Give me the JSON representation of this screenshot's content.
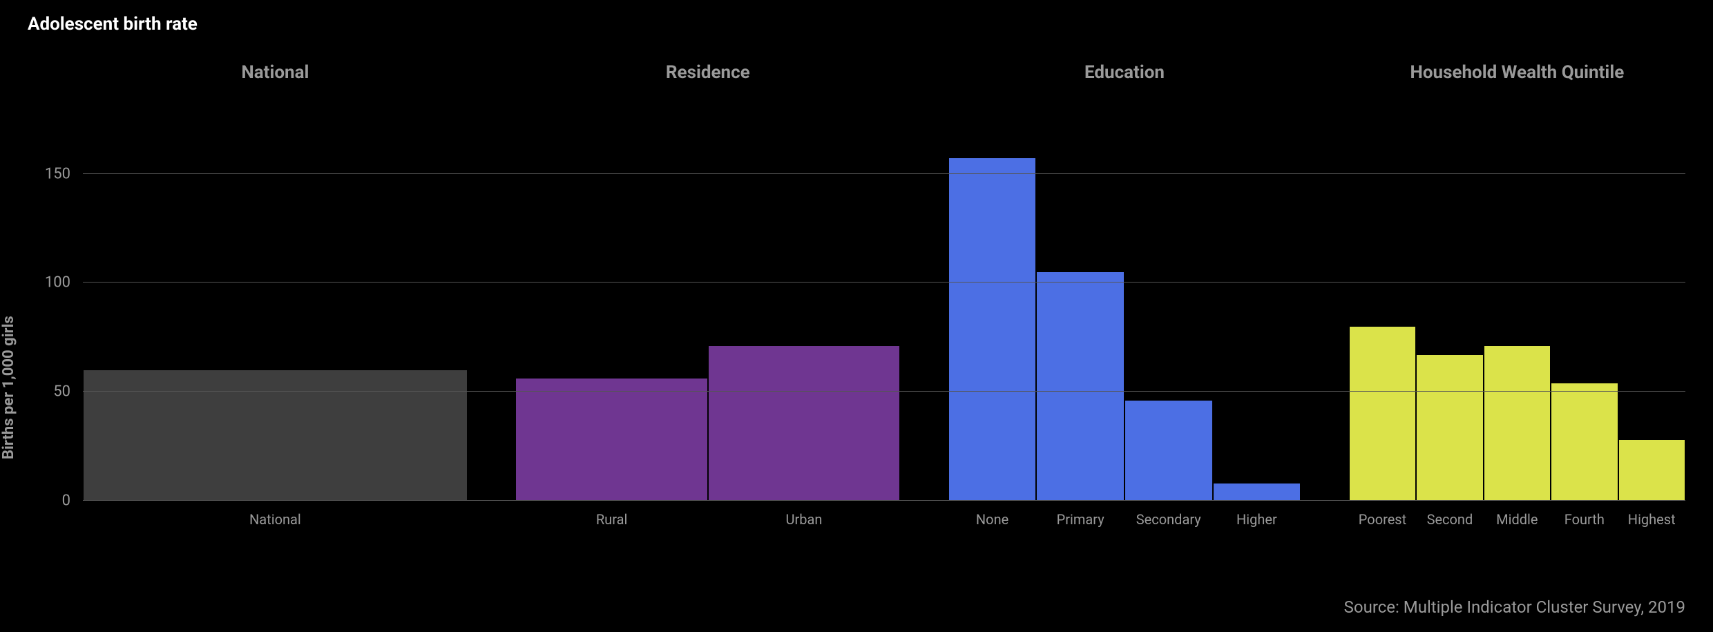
{
  "chart": {
    "type": "bar",
    "title": "Adolescent birth rate",
    "title_fontsize": 26,
    "title_fontweight": 700,
    "title_color": "#ffffff",
    "background_color": "#000000",
    "yaxis": {
      "title": "Births per 1,000 girls",
      "title_fontsize": 22,
      "title_fontweight": 700,
      "title_color": "#9a9a9a",
      "ylim": [
        0,
        160
      ],
      "ticks": [
        0,
        50,
        100,
        150
      ],
      "tick_fontsize": 22,
      "tick_color": "#9a9a9a",
      "gridline_color": "#555555"
    },
    "group_header_fontsize": 26,
    "group_header_fontweight": 700,
    "group_header_color": "#9a9a9a",
    "x_label_fontsize": 20,
    "x_label_color": "#9a9a9a",
    "group_gap_pct": 3,
    "groups": [
      {
        "title": "National",
        "color": "#3e3e3e",
        "width_pct": 24,
        "bars": [
          {
            "label": "National",
            "value": 60
          }
        ]
      },
      {
        "title": "Residence",
        "color": "#6f3691",
        "width_pct": 24,
        "bars": [
          {
            "label": "Rural",
            "value": 56
          },
          {
            "label": "Urban",
            "value": 71
          }
        ]
      },
      {
        "title": "Education",
        "color": "#4c6fe4",
        "width_pct": 22,
        "bars": [
          {
            "label": "None",
            "value": 157
          },
          {
            "label": "Primary",
            "value": 105
          },
          {
            "label": "Secondary",
            "value": 46
          },
          {
            "label": "Higher",
            "value": 8
          }
        ]
      },
      {
        "title": "Household Wealth Quintile",
        "color": "#dbe34a",
        "width_pct": 21,
        "bars": [
          {
            "label": "Poorest",
            "value": 80
          },
          {
            "label": "Second",
            "value": 67
          },
          {
            "label": "Middle",
            "value": 71
          },
          {
            "label": "Fourth",
            "value": 54
          },
          {
            "label": "Highest",
            "value": 28
          }
        ]
      }
    ],
    "source": "Source: Multiple Indicator Cluster Survey, 2019",
    "source_fontsize": 24,
    "source_color": "#9a9a9a"
  }
}
